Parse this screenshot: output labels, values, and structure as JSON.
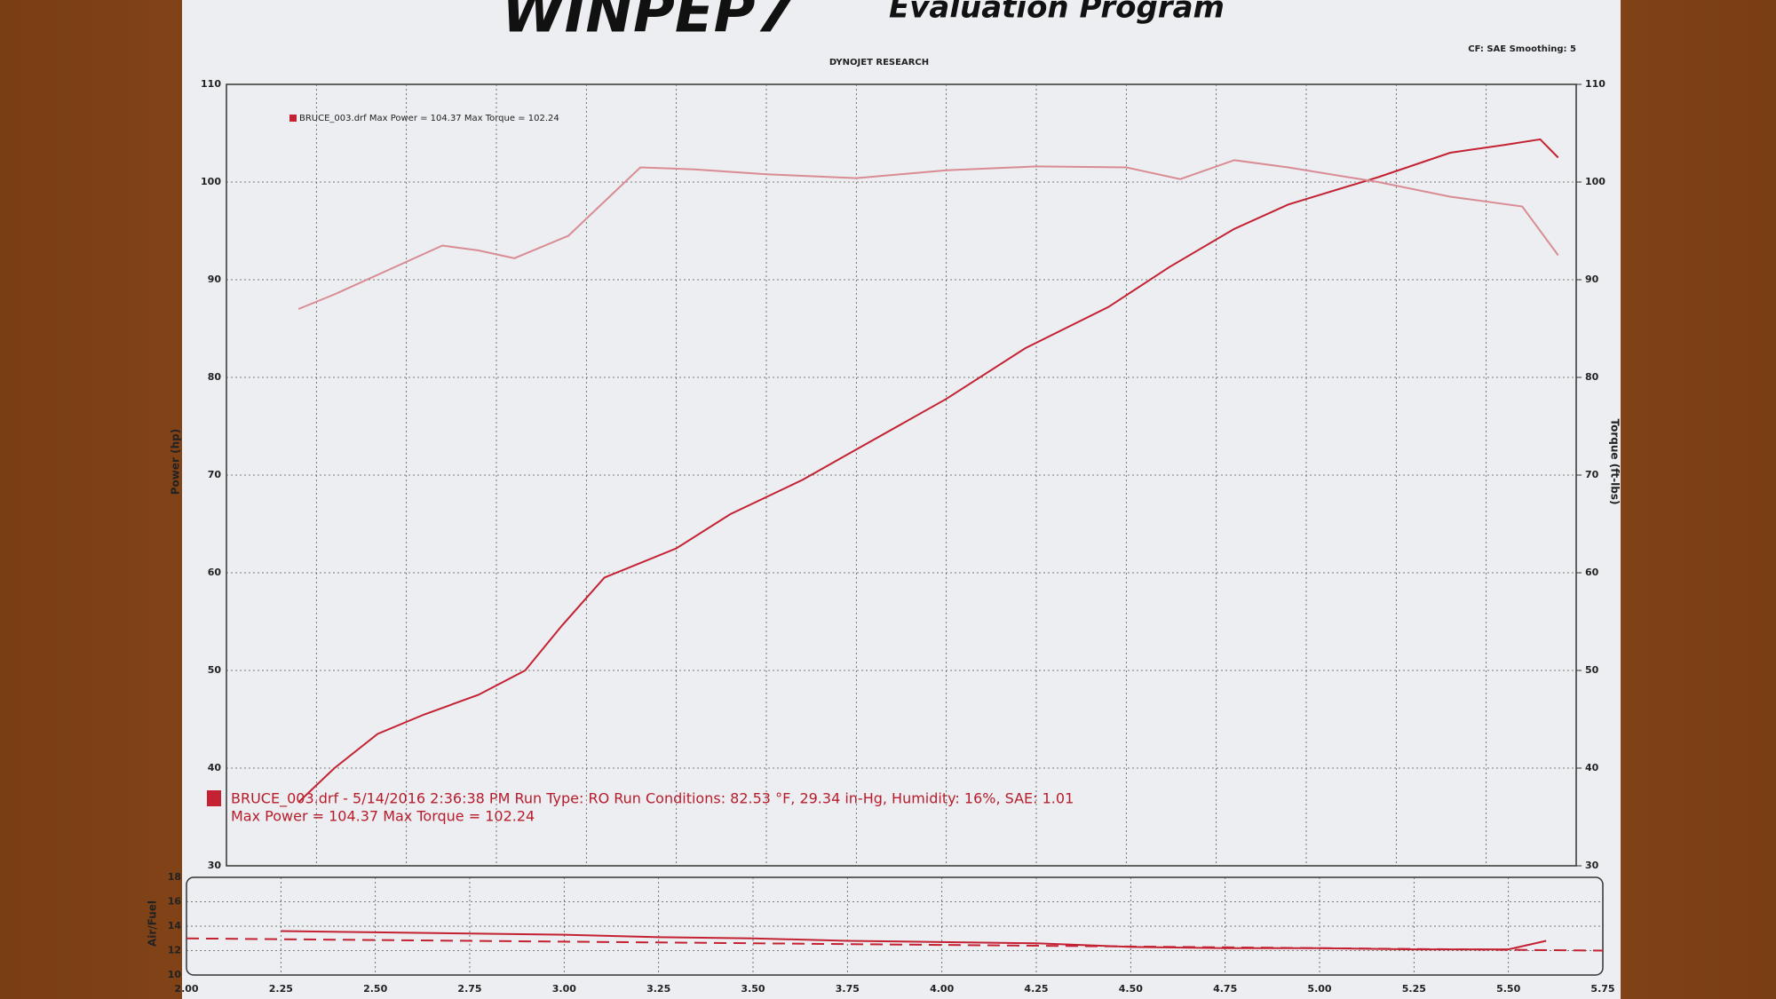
{
  "header": {
    "logo": "WINPEP7",
    "subtitle": "Evaluation Program"
  },
  "chart_data": [
    {
      "type": "line",
      "title": "DYNOJET RESEARCH",
      "settings_text": "CF: SAE  Smoothing: 5",
      "legend_text": "BRUCE_003.drf Max Power = 104.37    Max Torque = 102.24",
      "annotation": [
        "BRUCE_003.drf - 5/14/2016 2:36:38 PM  Run Type: RO  Run Conditions: 82.53 °F, 29.34 in-Hg,  Humidity: 16%, SAE: 1.01",
        "Max Power = 104.37  Max Torque = 102.24"
      ],
      "ylabel": "Power (hp)",
      "y2label": "Torque (ft-lbs)",
      "xlim": [
        2,
        5.75
      ],
      "ylim": [
        30,
        110
      ],
      "yticks": [
        30,
        40,
        50,
        60,
        70,
        80,
        90,
        100,
        110
      ],
      "y2lim": [
        30,
        110
      ],
      "y2ticks": [
        30,
        40,
        50,
        60,
        70,
        80,
        90,
        100,
        110
      ],
      "grid": true,
      "series": [
        {
          "color": "#c42232",
          "x": [
            2.2,
            2.3,
            2.42,
            2.55,
            2.7,
            2.83,
            2.93,
            3.05,
            3.25,
            3.4,
            3.6,
            3.72,
            4.0,
            4.22,
            4.45,
            4.62,
            4.8,
            4.95,
            5.2,
            5.4,
            5.55,
            5.65,
            5.7
          ],
          "values": [
            36.5,
            40,
            43.5,
            45.5,
            47.5,
            50,
            54.5,
            59.5,
            62.5,
            66,
            69.5,
            72,
            77.8,
            83,
            87.2,
            91.3,
            95.2,
            97.7,
            100.5,
            103,
            103.8,
            104.37,
            102.5
          ]
        },
        {
          "color": "#d98c94",
          "axis": "y2",
          "x": [
            2.2,
            2.3,
            2.45,
            2.6,
            2.7,
            2.8,
            2.95,
            3.05,
            3.15,
            3.3,
            3.5,
            3.75,
            4.0,
            4.25,
            4.5,
            4.65,
            4.8,
            4.95,
            5.2,
            5.4,
            5.6,
            5.7
          ],
          "values": [
            87,
            88.5,
            91,
            93.5,
            93,
            92.2,
            94.5,
            98,
            101.5,
            101.3,
            100.8,
            100.4,
            101.2,
            101.6,
            101.5,
            100.3,
            102.24,
            101.5,
            100,
            98.5,
            97.5,
            92.5
          ]
        }
      ]
    },
    {
      "type": "line",
      "ylabel": "Air/Fuel",
      "xlim": [
        2,
        5.75
      ],
      "xticks": [
        {
          "value": 2,
          "label": "2.00"
        },
        {
          "value": 2.25,
          "label": "2.25"
        },
        {
          "value": 2.5,
          "label": "2.50"
        },
        {
          "value": 2.75,
          "label": "2.75"
        },
        {
          "value": 3,
          "label": "3.00"
        },
        {
          "value": 3.25,
          "label": "3.25"
        },
        {
          "value": 3.5,
          "label": "3.50"
        },
        {
          "value": 3.75,
          "label": "3.75"
        },
        {
          "value": 4,
          "label": "4.00"
        },
        {
          "value": 4.25,
          "label": "4.25"
        },
        {
          "value": 4.5,
          "label": "4.50"
        },
        {
          "value": 4.75,
          "label": "4.75"
        },
        {
          "value": 5,
          "label": "5.00"
        },
        {
          "value": 5.25,
          "label": "5.25"
        },
        {
          "value": 5.5,
          "label": "5.50"
        },
        {
          "value": 5.75,
          "label": "5.75"
        }
      ],
      "ylim": [
        10,
        18
      ],
      "yticks": [
        10,
        12,
        14,
        16,
        18
      ],
      "grid": true,
      "series": [
        {
          "color": "#c42232",
          "x": [
            2.25,
            2.5,
            2.75,
            3,
            3.25,
            3.5,
            3.75,
            4,
            4.25,
            4.5,
            4.75,
            5,
            5.25,
            5.5,
            5.6
          ],
          "values": [
            13.6,
            13.5,
            13.4,
            13.3,
            13.1,
            13,
            12.8,
            12.7,
            12.6,
            12.3,
            12.2,
            12.2,
            12.1,
            12.1,
            12.8
          ]
        },
        {
          "color": "#c42232",
          "dash": true,
          "x": [
            2,
            5.75
          ],
          "values": [
            13,
            12
          ]
        }
      ]
    }
  ]
}
